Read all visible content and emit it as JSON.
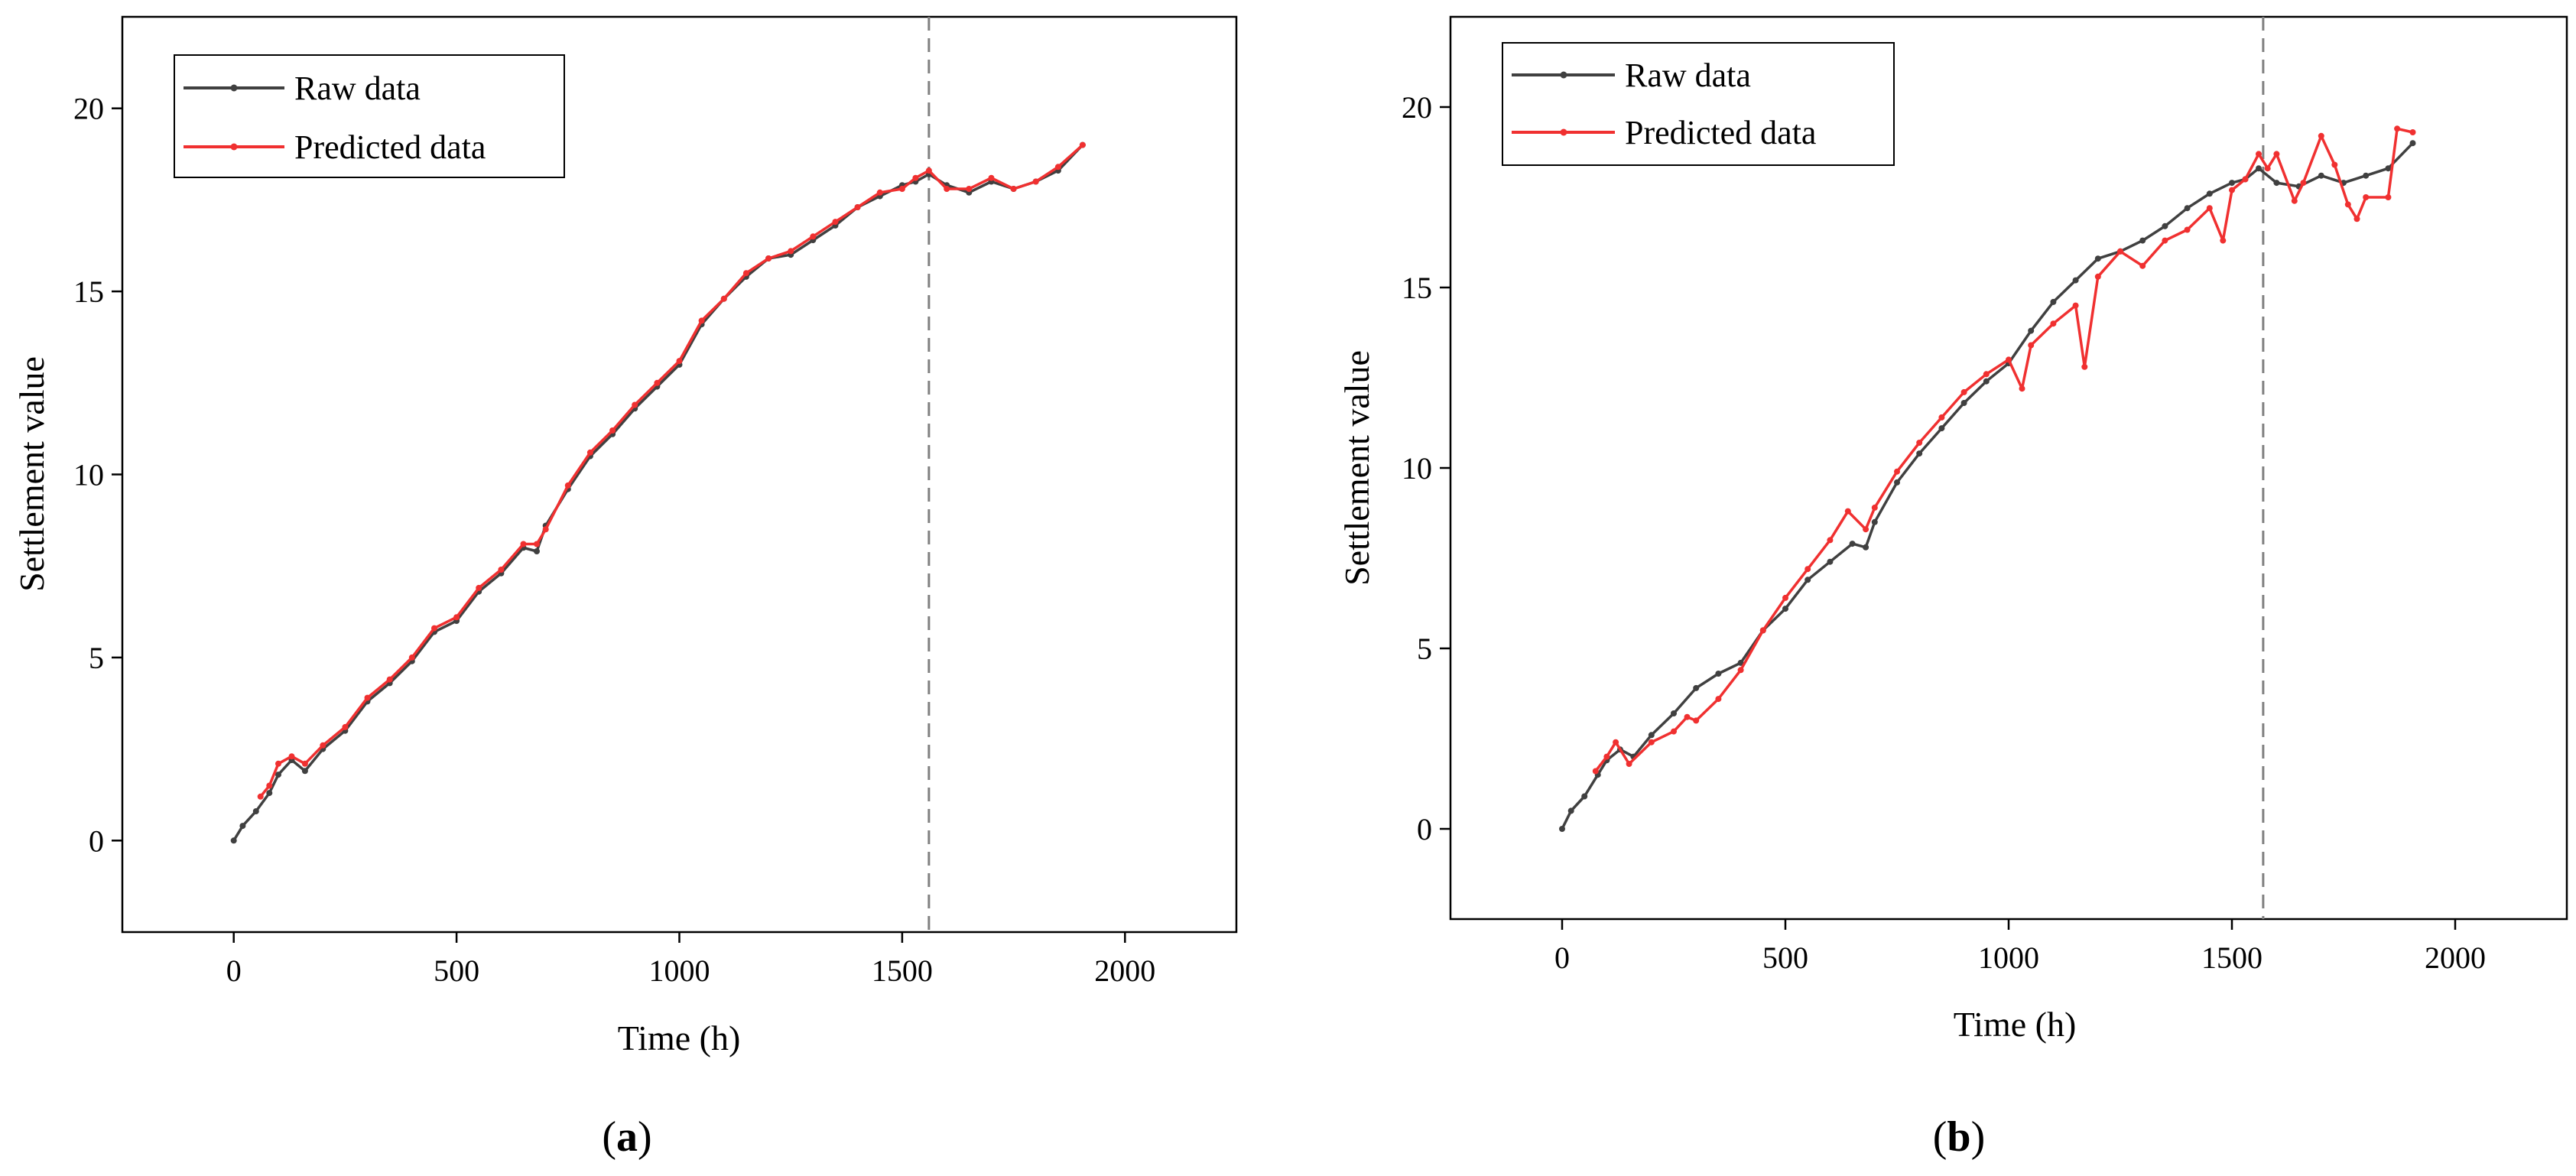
{
  "chart_data": [
    {
      "type": "line",
      "panel_label": "a",
      "xlabel": "Time (h)",
      "ylabel": "Settlement value",
      "xlim": [
        -250,
        2250
      ],
      "ylim": [
        -2.5,
        22.5
      ],
      "xticks": [
        0,
        500,
        1000,
        1500,
        2000
      ],
      "yticks": [
        0,
        5,
        10,
        15,
        20
      ],
      "xtick_labels": [
        "0",
        "500",
        "1000",
        "1500",
        "2000"
      ],
      "ytick_labels": [
        "0",
        "5",
        "10",
        "15",
        "20"
      ],
      "grid": false,
      "legend_position": "top-left",
      "vline_x": 1560,
      "series": [
        {
          "name": "Raw data",
          "color": "#404040",
          "x": [
            0,
            20,
            50,
            80,
            100,
            130,
            160,
            200,
            250,
            300,
            350,
            400,
            450,
            500,
            550,
            600,
            650,
            680,
            700,
            750,
            800,
            850,
            900,
            950,
            1000,
            1050,
            1100,
            1150,
            1200,
            1250,
            1300,
            1350,
            1400,
            1450,
            1500,
            1530,
            1560,
            1600,
            1650,
            1700,
            1750,
            1800,
            1850,
            1905
          ],
          "y": [
            0,
            0.4,
            0.8,
            1.3,
            1.8,
            2.2,
            1.9,
            2.5,
            3.0,
            3.8,
            4.3,
            4.9,
            5.7,
            6.0,
            6.8,
            7.3,
            8.0,
            7.9,
            8.6,
            9.6,
            10.5,
            11.1,
            11.8,
            12.4,
            13.0,
            14.1,
            14.8,
            15.4,
            15.9,
            16.0,
            16.4,
            16.8,
            17.3,
            17.6,
            17.9,
            18.0,
            18.2,
            17.9,
            17.7,
            18.0,
            17.8,
            18.0,
            18.3,
            19.0
          ]
        },
        {
          "name": "Predicted data",
          "color": "#f03030",
          "x": [
            60,
            80,
            100,
            130,
            160,
            200,
            250,
            300,
            350,
            400,
            450,
            500,
            550,
            600,
            650,
            680,
            700,
            750,
            800,
            850,
            900,
            950,
            1000,
            1050,
            1100,
            1150,
            1200,
            1250,
            1300,
            1350,
            1400,
            1450,
            1500,
            1530,
            1560,
            1600,
            1650,
            1700,
            1750,
            1800,
            1850,
            1905
          ],
          "y": [
            1.2,
            1.5,
            2.1,
            2.3,
            2.1,
            2.6,
            3.1,
            3.9,
            4.4,
            5.0,
            5.8,
            6.1,
            6.9,
            7.4,
            8.1,
            8.1,
            8.5,
            9.7,
            10.6,
            11.2,
            11.9,
            12.5,
            13.1,
            14.2,
            14.8,
            15.5,
            15.9,
            16.1,
            16.5,
            16.9,
            17.3,
            17.7,
            17.8,
            18.1,
            18.3,
            17.8,
            17.8,
            18.1,
            17.8,
            18.0,
            18.4,
            19.0
          ]
        }
      ]
    },
    {
      "type": "line",
      "panel_label": "b",
      "xlabel": "Time (h)",
      "ylabel": "Settlement value",
      "xlim": [
        -250,
        2250
      ],
      "ylim": [
        -2.5,
        22.5
      ],
      "xticks": [
        0,
        500,
        1000,
        1500,
        2000
      ],
      "yticks": [
        0,
        5,
        10,
        15,
        20
      ],
      "xtick_labels": [
        "0",
        "500",
        "1000",
        "1500",
        "2000"
      ],
      "ytick_labels": [
        "0",
        "5",
        "10",
        "15",
        "20"
      ],
      "grid": false,
      "legend_position": "top-left",
      "vline_x": 1570,
      "series": [
        {
          "name": "Raw data",
          "color": "#404040",
          "x": [
            0,
            20,
            50,
            80,
            100,
            130,
            160,
            200,
            250,
            300,
            350,
            400,
            450,
            500,
            550,
            600,
            650,
            680,
            700,
            750,
            800,
            850,
            900,
            950,
            1000,
            1050,
            1100,
            1150,
            1200,
            1250,
            1300,
            1350,
            1400,
            1450,
            1500,
            1530,
            1560,
            1600,
            1650,
            1700,
            1750,
            1800,
            1850,
            1905
          ],
          "y": [
            0,
            0.5,
            0.9,
            1.5,
            1.9,
            2.2,
            2.0,
            2.6,
            3.2,
            3.9,
            4.3,
            4.6,
            5.5,
            6.1,
            6.9,
            7.4,
            7.9,
            7.8,
            8.5,
            9.6,
            10.4,
            11.1,
            11.8,
            12.4,
            12.9,
            13.8,
            14.6,
            15.2,
            15.8,
            16.0,
            16.3,
            16.7,
            17.2,
            17.6,
            17.9,
            18.0,
            18.3,
            17.9,
            17.8,
            18.1,
            17.9,
            18.1,
            18.3,
            19.0
          ]
        },
        {
          "name": "Predicted data",
          "color": "#f03030",
          "x": [
            75,
            100,
            120,
            150,
            200,
            250,
            280,
            300,
            350,
            400,
            450,
            500,
            550,
            600,
            640,
            680,
            700,
            750,
            800,
            850,
            900,
            950,
            1000,
            1030,
            1050,
            1100,
            1150,
            1170,
            1200,
            1250,
            1300,
            1350,
            1400,
            1450,
            1480,
            1500,
            1530,
            1560,
            1580,
            1600,
            1640,
            1660,
            1700,
            1730,
            1760,
            1780,
            1800,
            1850,
            1870,
            1905
          ],
          "y": [
            1.6,
            2.0,
            2.4,
            1.8,
            2.4,
            2.7,
            3.1,
            3.0,
            3.6,
            4.4,
            5.5,
            6.4,
            7.2,
            8.0,
            8.8,
            8.3,
            8.9,
            9.9,
            10.7,
            11.4,
            12.1,
            12.6,
            13.0,
            12.2,
            13.4,
            14.0,
            14.5,
            12.8,
            15.3,
            16.0,
            15.6,
            16.3,
            16.6,
            17.2,
            16.3,
            17.7,
            18.0,
            18.7,
            18.3,
            18.7,
            17.4,
            17.9,
            19.2,
            18.4,
            17.3,
            16.9,
            17.5,
            17.5,
            19.4,
            19.3
          ]
        }
      ]
    }
  ]
}
